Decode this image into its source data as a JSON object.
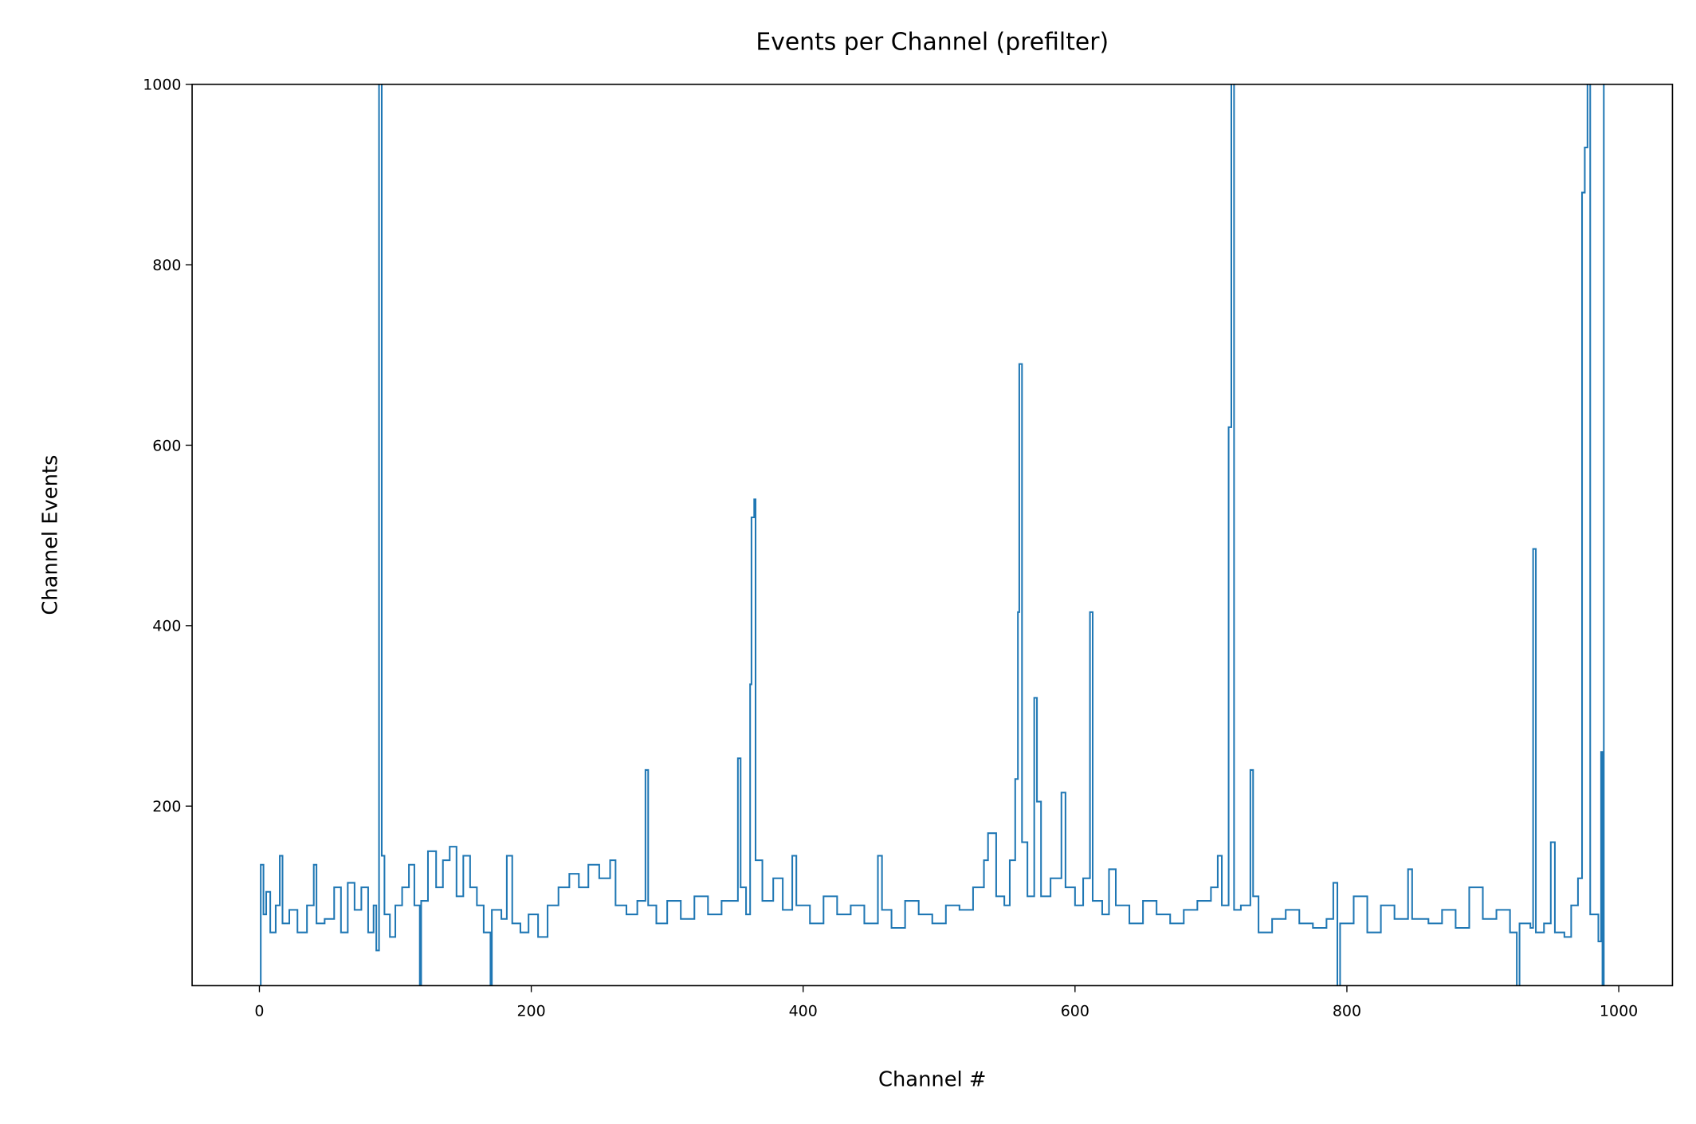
{
  "chart_data": {
    "type": "line",
    "step": "post",
    "title": "Events per Channel (prefilter)",
    "xlabel": "Channel #",
    "ylabel": "Channel Events",
    "color": "#1f77b4",
    "xlim": [
      -49.5,
      1039.5
    ],
    "ylim": [
      1,
      1000
    ],
    "xticks": [
      0,
      200,
      400,
      600,
      800,
      1000
    ],
    "yticks": [
      200,
      400,
      600,
      800,
      1000
    ],
    "x": [
      0,
      1,
      3,
      5,
      8,
      12,
      15,
      17,
      22,
      28,
      35,
      40,
      42,
      48,
      55,
      60,
      65,
      70,
      75,
      80,
      84,
      86,
      88,
      90,
      92,
      96,
      100,
      105,
      110,
      114,
      118,
      119,
      124,
      130,
      135,
      140,
      145,
      150,
      155,
      160,
      165,
      170,
      171,
      178,
      182,
      186,
      192,
      198,
      205,
      212,
      220,
      228,
      235,
      242,
      250,
      258,
      262,
      270,
      278,
      284,
      286,
      292,
      300,
      310,
      320,
      330,
      340,
      352,
      354,
      358,
      361,
      362,
      364,
      365,
      370,
      378,
      385,
      392,
      395,
      405,
      415,
      425,
      435,
      445,
      455,
      458,
      465,
      475,
      485,
      495,
      505,
      515,
      525,
      533,
      536,
      542,
      548,
      552,
      556,
      558,
      559,
      561,
      565,
      570,
      572,
      575,
      582,
      590,
      593,
      600,
      606,
      611,
      613,
      620,
      625,
      630,
      640,
      650,
      660,
      670,
      680,
      690,
      700,
      705,
      708,
      713,
      715,
      717,
      722,
      729,
      731,
      735,
      745,
      755,
      765,
      775,
      785,
      790,
      793,
      795,
      805,
      815,
      825,
      835,
      845,
      848,
      860,
      870,
      880,
      890,
      900,
      910,
      920,
      925,
      927,
      935,
      937,
      939,
      945,
      950,
      953,
      960,
      965,
      970,
      973,
      975,
      977,
      979,
      985,
      987,
      988,
      989
    ],
    "values": [
      0,
      135,
      80,
      105,
      60,
      90,
      145,
      70,
      85,
      60,
      90,
      135,
      70,
      75,
      110,
      60,
      115,
      85,
      110,
      60,
      90,
      40,
      1100,
      145,
      80,
      55,
      90,
      110,
      135,
      90,
      0,
      95,
      150,
      110,
      140,
      155,
      100,
      145,
      110,
      90,
      60,
      0,
      85,
      75,
      145,
      70,
      60,
      80,
      55,
      90,
      110,
      125,
      110,
      135,
      120,
      140,
      90,
      80,
      95,
      240,
      90,
      70,
      95,
      75,
      100,
      80,
      95,
      253,
      110,
      80,
      335,
      520,
      540,
      140,
      95,
      120,
      85,
      145,
      90,
      70,
      100,
      80,
      90,
      70,
      145,
      85,
      65,
      95,
      80,
      70,
      90,
      85,
      110,
      140,
      170,
      100,
      90,
      140,
      230,
      415,
      690,
      160,
      100,
      320,
      205,
      100,
      120,
      215,
      110,
      90,
      120,
      415,
      95,
      80,
      130,
      90,
      70,
      95,
      80,
      70,
      85,
      95,
      110,
      145,
      90,
      620,
      1100,
      85,
      90,
      240,
      100,
      60,
      75,
      85,
      70,
      65,
      75,
      115,
      0,
      70,
      100,
      60,
      90,
      75,
      130,
      75,
      70,
      85,
      65,
      110,
      75,
      85,
      60,
      0,
      70,
      65,
      485,
      60,
      70,
      160,
      60,
      55,
      90,
      120,
      880,
      930,
      1100,
      80,
      50,
      260,
      0,
      1100
    ]
  }
}
